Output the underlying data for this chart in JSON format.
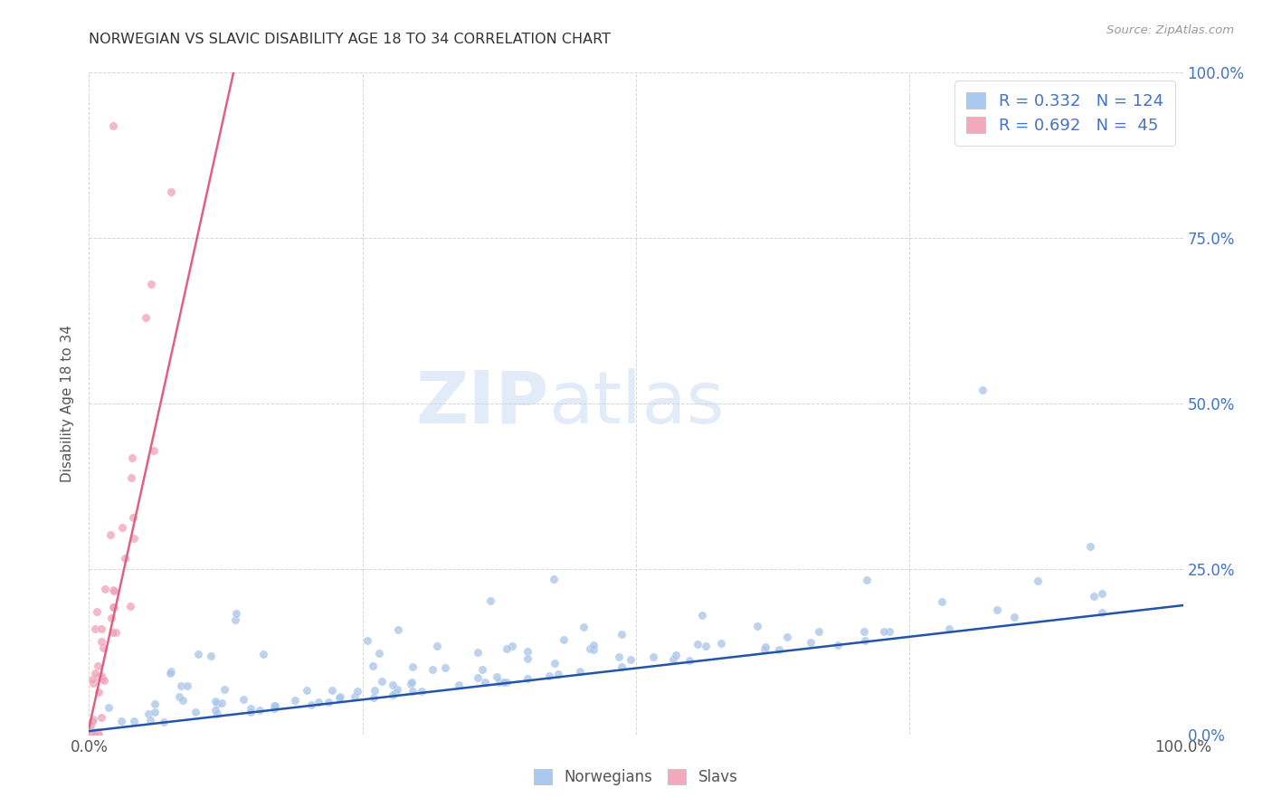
{
  "title": "NORWEGIAN VS SLAVIC DISABILITY AGE 18 TO 34 CORRELATION CHART",
  "source": "Source: ZipAtlas.com",
  "ylabel": "Disability Age 18 to 34",
  "watermark_zip": "ZIP",
  "watermark_atlas": "atlas",
  "norwegian_color": "#a8c4e8",
  "slavic_color": "#f0a0b8",
  "norwegian_line_color": "#2255aa",
  "slavic_line_color": "#e06080",
  "norwegian_r": 0.332,
  "norwegian_n": 124,
  "slavic_r": 0.692,
  "slavic_n": 45,
  "xlim": [
    0,
    1.0
  ],
  "ylim": [
    0,
    1.0
  ],
  "xtick_labels_left": "0.0%",
  "xtick_labels_right": "100.0%",
  "ytick_labels": [
    "0.0%",
    "25.0%",
    "50.0%",
    "75.0%",
    "100.0%"
  ],
  "ytick_positions": [
    0,
    0.25,
    0.5,
    0.75,
    1.0
  ],
  "background_color": "#ffffff",
  "grid_color": "#cccccc",
  "legend_patch_norw": "#aac8f0",
  "legend_patch_slav": "#f4a8bc",
  "legend_text_color": "#4472C4",
  "label_color": "#555555",
  "title_color": "#333333",
  "source_color": "#999999",
  "norw_slope": 0.19,
  "norw_intercept": 0.005,
  "slav_slope": 7.5,
  "slav_intercept": 0.01
}
